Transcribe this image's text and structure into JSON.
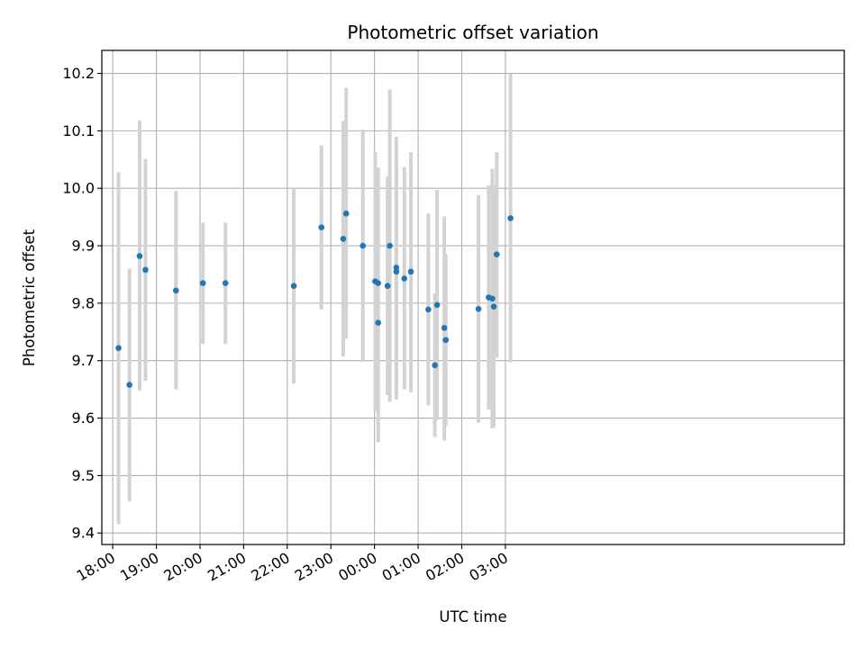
{
  "chart_data": {
    "type": "scatter",
    "title": "Photometric offset variation",
    "xlabel": "UTC time",
    "ylabel": "Photometric offset",
    "x_unit": "minutes_since_18:00",
    "xlim": [
      -15,
      1006
    ],
    "ylim": [
      9.38,
      10.24
    ],
    "x_ticks": [
      {
        "value": 0,
        "label": "18:00"
      },
      {
        "value": 60,
        "label": "19:00"
      },
      {
        "value": 120,
        "label": "20:00"
      },
      {
        "value": 180,
        "label": "21:00"
      },
      {
        "value": 240,
        "label": "22:00"
      },
      {
        "value": 300,
        "label": "23:00"
      },
      {
        "value": 360,
        "label": "00:00"
      },
      {
        "value": 420,
        "label": "01:00"
      },
      {
        "value": 480,
        "label": "02:00"
      },
      {
        "value": 540,
        "label": "03:00"
      }
    ],
    "y_ticks": [
      {
        "value": 9.4,
        "label": "9.4"
      },
      {
        "value": 9.5,
        "label": "9.5"
      },
      {
        "value": 9.6,
        "label": "9.6"
      },
      {
        "value": 9.7,
        "label": "9.7"
      },
      {
        "value": 9.8,
        "label": "9.8"
      },
      {
        "value": 9.9,
        "label": "9.9"
      },
      {
        "value": 10.0,
        "label": "10.0"
      },
      {
        "value": 10.1,
        "label": "10.1"
      },
      {
        "value": 10.2,
        "label": "10.2"
      }
    ],
    "grid": true,
    "marker_color": "#1f77b4",
    "errorbar_color": "#d3d3d3",
    "points": [
      {
        "x": 8,
        "y": 9.722,
        "ylo": 9.415,
        "yhi": 10.028
      },
      {
        "x": 23,
        "y": 9.658,
        "ylo": 9.455,
        "yhi": 9.86
      },
      {
        "x": 37,
        "y": 9.882,
        "ylo": 9.648,
        "yhi": 10.118
      },
      {
        "x": 45,
        "y": 9.858,
        "ylo": 9.665,
        "yhi": 10.051
      },
      {
        "x": 87,
        "y": 9.822,
        "ylo": 9.65,
        "yhi": 9.995
      },
      {
        "x": 124,
        "y": 9.835,
        "ylo": 9.729,
        "yhi": 9.94
      },
      {
        "x": 155,
        "y": 9.835,
        "ylo": 9.729,
        "yhi": 9.94
      },
      {
        "x": 249,
        "y": 9.83,
        "ylo": 9.66,
        "yhi": 10.0
      },
      {
        "x": 287,
        "y": 9.932,
        "ylo": 9.789,
        "yhi": 10.075
      },
      {
        "x": 317,
        "y": 9.912,
        "ylo": 9.707,
        "yhi": 10.117
      },
      {
        "x": 321,
        "y": 9.956,
        "ylo": 9.738,
        "yhi": 10.175
      },
      {
        "x": 344,
        "y": 9.9,
        "ylo": 9.698,
        "yhi": 10.102
      },
      {
        "x": 361,
        "y": 9.838,
        "ylo": 9.612,
        "yhi": 10.063
      },
      {
        "x": 365,
        "y": 9.835,
        "ylo": 9.632,
        "yhi": 10.036
      },
      {
        "x": 365,
        "y": 9.766,
        "ylo": 9.558,
        "yhi": 9.974
      },
      {
        "x": 378,
        "y": 9.83,
        "ylo": 9.64,
        "yhi": 10.02
      },
      {
        "x": 381,
        "y": 9.9,
        "ylo": 9.628,
        "yhi": 10.172
      },
      {
        "x": 390,
        "y": 9.862,
        "ylo": 9.632,
        "yhi": 10.09
      },
      {
        "x": 390,
        "y": 9.855,
        "ylo": 9.64,
        "yhi": 10.07
      },
      {
        "x": 401,
        "y": 9.843,
        "ylo": 9.65,
        "yhi": 10.037
      },
      {
        "x": 410,
        "y": 9.855,
        "ylo": 9.645,
        "yhi": 10.063
      },
      {
        "x": 434,
        "y": 9.789,
        "ylo": 9.622,
        "yhi": 9.956
      },
      {
        "x": 443,
        "y": 9.692,
        "ylo": 9.567,
        "yhi": 9.817
      },
      {
        "x": 446,
        "y": 9.797,
        "ylo": 9.597,
        "yhi": 9.997
      },
      {
        "x": 456,
        "y": 9.757,
        "ylo": 9.561,
        "yhi": 9.951
      },
      {
        "x": 458,
        "y": 9.736,
        "ylo": 9.586,
        "yhi": 9.886
      },
      {
        "x": 503,
        "y": 9.79,
        "ylo": 9.592,
        "yhi": 9.988
      },
      {
        "x": 517,
        "y": 9.81,
        "ylo": 9.615,
        "yhi": 10.005
      },
      {
        "x": 522,
        "y": 9.808,
        "ylo": 9.582,
        "yhi": 10.034
      },
      {
        "x": 524,
        "y": 9.794,
        "ylo": 9.584,
        "yhi": 10.004
      },
      {
        "x": 528,
        "y": 9.885,
        "ylo": 9.705,
        "yhi": 10.063
      },
      {
        "x": 547,
        "y": 9.948,
        "ylo": 9.697,
        "yhi": 10.199
      }
    ]
  }
}
